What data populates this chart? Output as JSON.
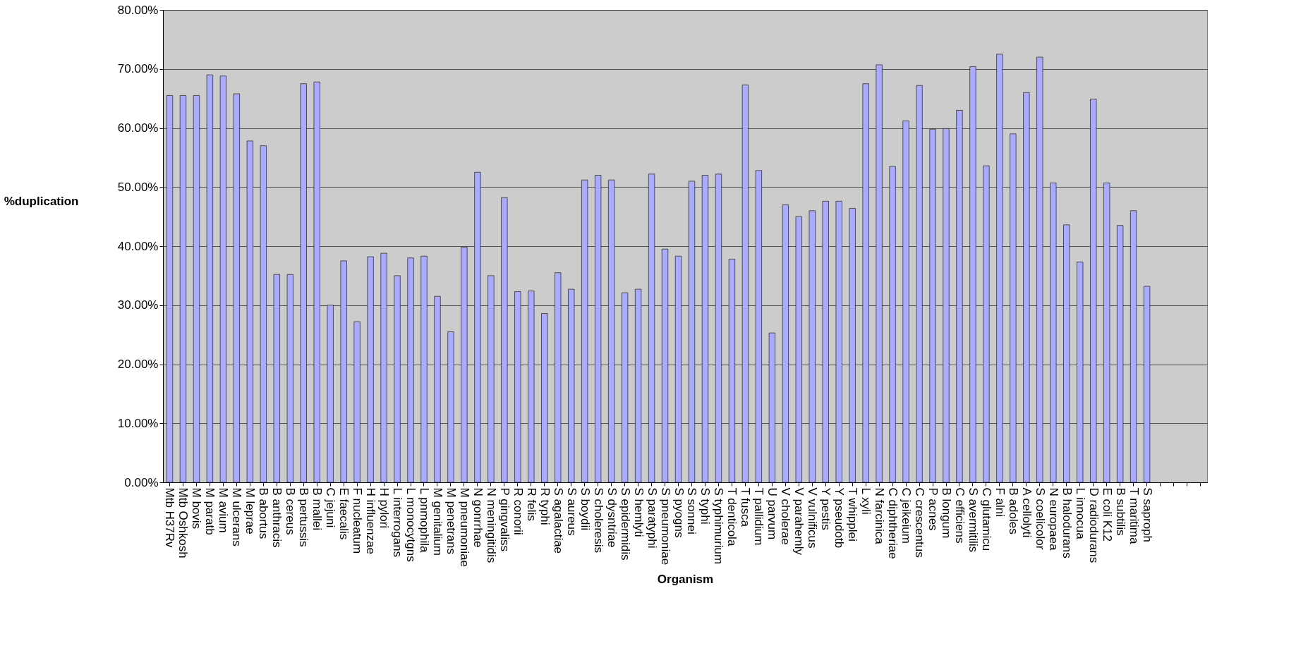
{
  "chart_data": {
    "type": "bar",
    "xlabel": "Organism",
    "ylabel": "%duplication",
    "categories": [
      "Mtb H37Rv",
      "Mtb Oshkosh",
      "M bovis",
      "M paratb",
      "M avium",
      "M ulcerans",
      "M leprae",
      "B abortus",
      "B anthracis",
      "B cereus",
      "B pertussis",
      "B mallei",
      "C jejuni",
      "E faecalis",
      "F nucleatum",
      "H influenzae",
      "H pylori",
      "L interrogans",
      "L monocytgns",
      "L pnmophila",
      "M genitalium",
      "M penetrans",
      "M pneumoniae",
      "N gonrrhae",
      "N meningitidis",
      "P gingvaliss",
      "R conorii",
      "R felis",
      "R typhi",
      "S agalactiae",
      "S aureus",
      "S boydii",
      "S choleresis",
      "S dysntriae",
      "S epidermidis",
      "S hemlyti",
      "S paratyphi",
      "S pneumoniae",
      "S pyogns",
      "S sonnei",
      "S typhi",
      "S typhimurium",
      "T denticola",
      "T fusca",
      "T pallidium",
      "U parvum",
      "V cholerae",
      "V parahemly",
      "V vulnificus",
      "Y pestis",
      "Y pseudotb",
      "T whipplei",
      "L xyli",
      "N farcinica",
      "C diphtheriae",
      "C jeikeium",
      "C crescentus",
      "P acnes",
      "B longum",
      "C efficiens",
      "S avermitilis",
      "C glutamicu",
      "F alni",
      "B adoles",
      "A cellolyti",
      "S coelicolor",
      "N europaea",
      "B halodurans",
      "L innocua",
      "D radiodurans",
      "E coli K12",
      "B subtilis",
      "T maritima",
      "S saproph",
      null,
      null,
      null,
      null
    ],
    "values": [
      65.5,
      65.5,
      65.5,
      69,
      68.8,
      65.8,
      57.8,
      57,
      35.2,
      35.2,
      67.5,
      67.8,
      30,
      37.5,
      27.2,
      38.2,
      38.8,
      35,
      38,
      38.3,
      31.5,
      25.5,
      39.8,
      52.5,
      35,
      48.2,
      32.3,
      32.4,
      28.6,
      35.5,
      32.7,
      51.2,
      52,
      51.2,
      32.1,
      32.7,
      52.2,
      39.5,
      38.3,
      51,
      52,
      52.2,
      37.8,
      67.3,
      52.8,
      25.3,
      47,
      45,
      46,
      47.6,
      47.6,
      46.4,
      67.5,
      70.7,
      53.5,
      61.2,
      67.2,
      59.8,
      59.9,
      63,
      70.4,
      53.6,
      72.5,
      59,
      66,
      72,
      50.7,
      43.6,
      37.3,
      64.9,
      50.7,
      43.5,
      46,
      33.2,
      null,
      null,
      null,
      null
    ],
    "color": "#aaaaff",
    "ylim": [
      0,
      80
    ],
    "yticks": [
      {
        "value": 0,
        "label": "0.00%"
      },
      {
        "value": 10,
        "label": "10.00%"
      },
      {
        "value": 20,
        "label": "20.00%"
      },
      {
        "value": 30,
        "label": "30.00%"
      },
      {
        "value": 40,
        "label": "40.00%"
      },
      {
        "value": 50,
        "label": "50.00%"
      },
      {
        "value": 60,
        "label": "60.00%"
      },
      {
        "value": 70,
        "label": "70.00%"
      },
      {
        "value": 80,
        "label": "80.00%"
      }
    ],
    "grid": "y"
  }
}
